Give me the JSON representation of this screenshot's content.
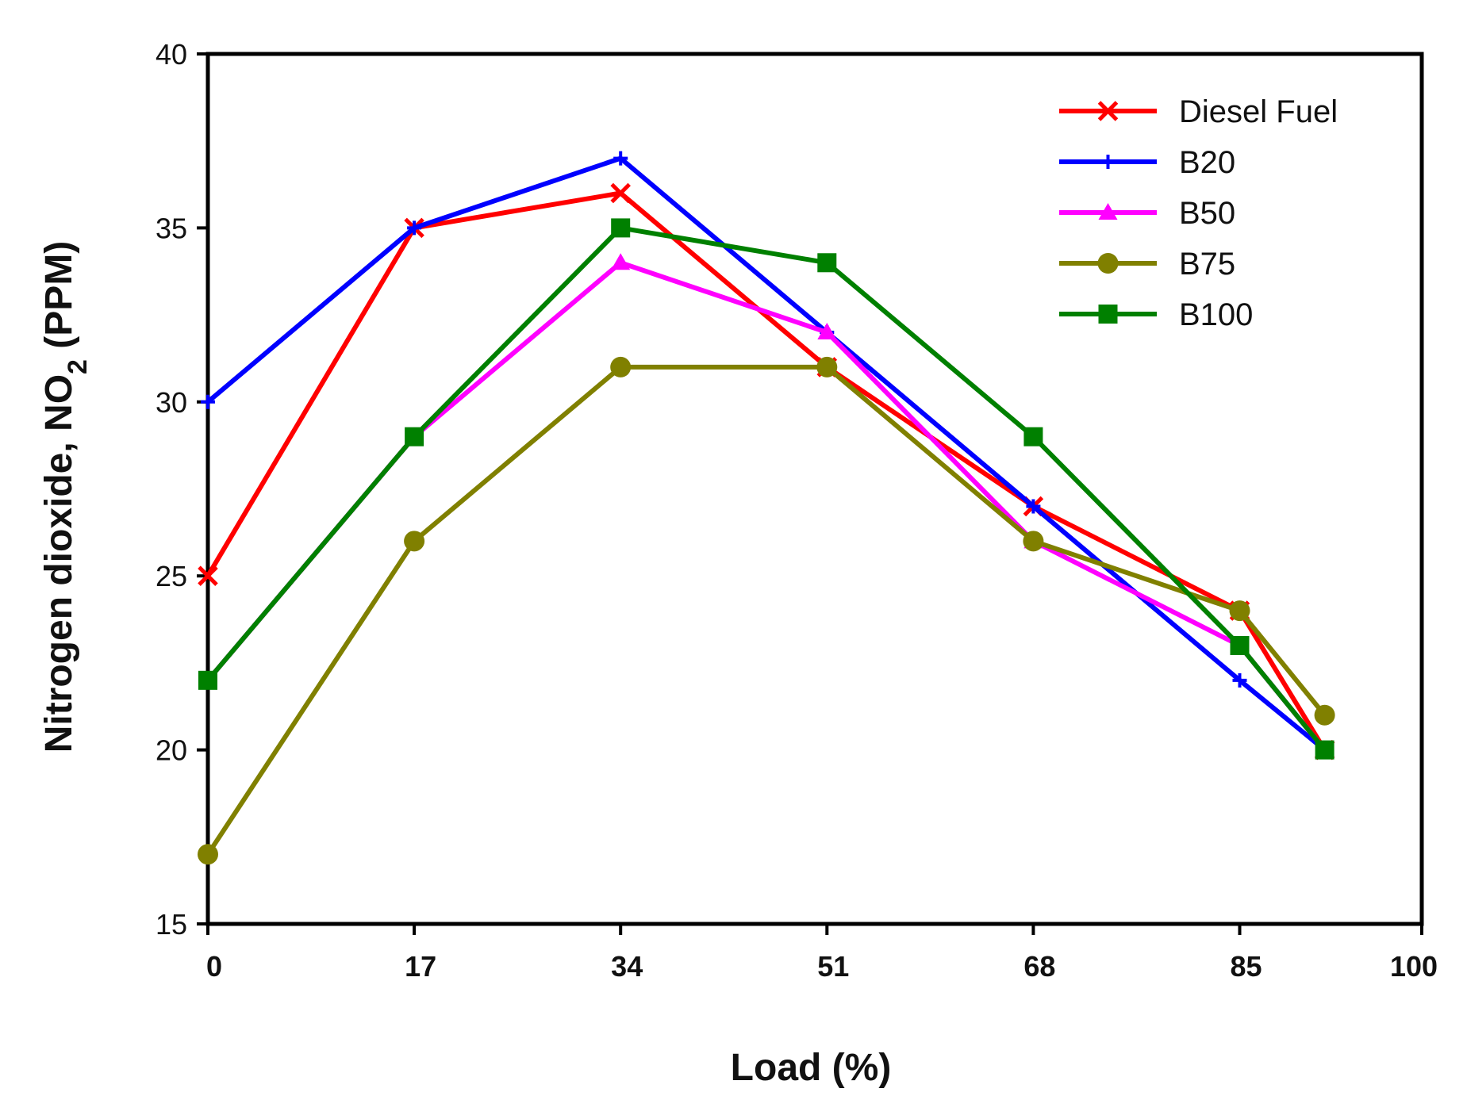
{
  "chart_data": {
    "type": "line",
    "title": "",
    "xlabel": "Load (%)",
    "ylabel_main": "Nitrogen dioxide, NO",
    "ylabel_sub": "2",
    "ylabel_tail": " (PPM)",
    "xlim": [
      0,
      100
    ],
    "ylim": [
      15,
      40
    ],
    "x_ticks": [
      0,
      17,
      34,
      51,
      68,
      85,
      100
    ],
    "x_tick_labels": [
      "0",
      "17",
      "34",
      "51",
      "68",
      "85",
      "100"
    ],
    "y_ticks": [
      15,
      20,
      25,
      30,
      35,
      40
    ],
    "y_tick_labels": [
      "15",
      "20",
      "25",
      "30",
      "35",
      "40"
    ],
    "grid": false,
    "legend_position": "top-right",
    "series": [
      {
        "name": "Diesel Fuel",
        "color": "#ff0000",
        "marker": "x",
        "x": [
          0,
          17,
          34,
          51,
          68,
          85,
          92
        ],
        "values": [
          25,
          35,
          36,
          31,
          27,
          24,
          20
        ]
      },
      {
        "name": "B20",
        "color": "#0000ff",
        "marker": "plus",
        "x": [
          0,
          17,
          34,
          51,
          68,
          85,
          92
        ],
        "values": [
          30,
          35,
          37,
          32,
          27,
          22,
          20
        ]
      },
      {
        "name": "B50",
        "color": "#ff00ff",
        "marker": "triangle",
        "x": [
          0,
          17,
          34,
          51,
          68,
          85,
          92
        ],
        "values": [
          22,
          29,
          34,
          32,
          26,
          23,
          20
        ]
      },
      {
        "name": "B75",
        "color": "#808000",
        "marker": "circle",
        "x": [
          0,
          17,
          34,
          51,
          68,
          85,
          92
        ],
        "values": [
          17,
          26,
          31,
          31,
          26,
          24,
          21
        ]
      },
      {
        "name": "B100",
        "color": "#008000",
        "marker": "square",
        "x": [
          0,
          17,
          34,
          51,
          68,
          85,
          92
        ],
        "values": [
          22,
          29,
          35,
          34,
          29,
          23,
          20
        ]
      }
    ]
  }
}
